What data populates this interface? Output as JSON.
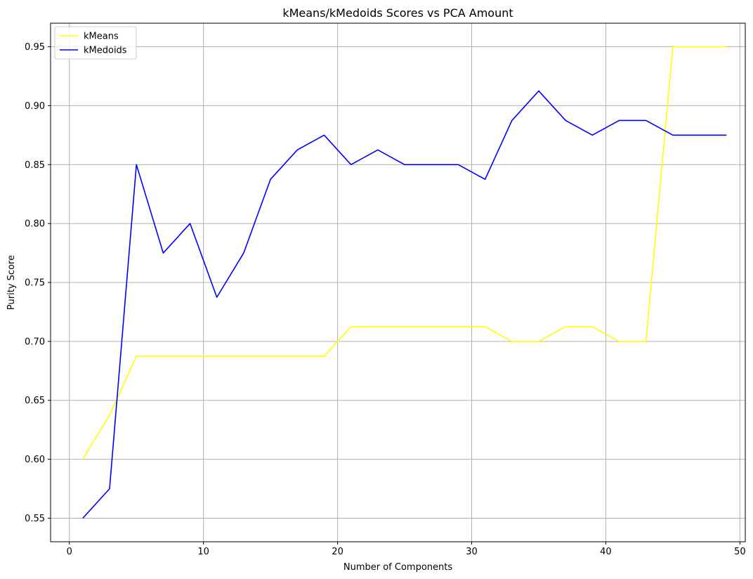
{
  "chart_data": {
    "type": "line",
    "title": "kMeans/kMedoids Scores vs PCA Amount",
    "xlabel": "Number of Components",
    "ylabel": "Purity Score",
    "xlim": [
      -1.4,
      50.4
    ],
    "ylim": [
      0.53,
      0.97
    ],
    "xticks": [
      0,
      10,
      20,
      30,
      40,
      50
    ],
    "xtick_labels": [
      "0",
      "10",
      "20",
      "30",
      "40",
      "50"
    ],
    "yticks": [
      0.55,
      0.6,
      0.65,
      0.7,
      0.75,
      0.8,
      0.85,
      0.9,
      0.95
    ],
    "ytick_labels": [
      "0.55",
      "0.60",
      "0.65",
      "0.70",
      "0.75",
      "0.80",
      "0.85",
      "0.90",
      "0.95"
    ],
    "grid": true,
    "legend_position": "top-left",
    "x": [
      1,
      3,
      5,
      7,
      9,
      11,
      13,
      15,
      17,
      19,
      21,
      23,
      25,
      27,
      29,
      31,
      33,
      35,
      37,
      39,
      41,
      43,
      45,
      47,
      49
    ],
    "series": [
      {
        "name": "kMeans",
        "color": "#ffff00",
        "values": [
          0.6,
          0.6375,
          0.6875,
          0.6875,
          0.6875,
          0.6875,
          0.6875,
          0.6875,
          0.6875,
          0.6875,
          0.7125,
          0.7125,
          0.7125,
          0.7125,
          0.7125,
          0.7125,
          0.7,
          0.7,
          0.7125,
          0.7125,
          0.7,
          0.7,
          0.95,
          0.95,
          0.95
        ]
      },
      {
        "name": "kMedoids",
        "color": "#0000ff",
        "values": [
          0.55,
          0.575,
          0.85,
          0.775,
          0.8,
          0.7375,
          0.775,
          0.8375,
          0.8625,
          0.875,
          0.85,
          0.8625,
          0.85,
          0.85,
          0.85,
          0.8375,
          0.8875,
          0.9125,
          0.8875,
          0.875,
          0.8875,
          0.8875,
          0.875,
          0.875,
          0.875
        ]
      }
    ]
  }
}
